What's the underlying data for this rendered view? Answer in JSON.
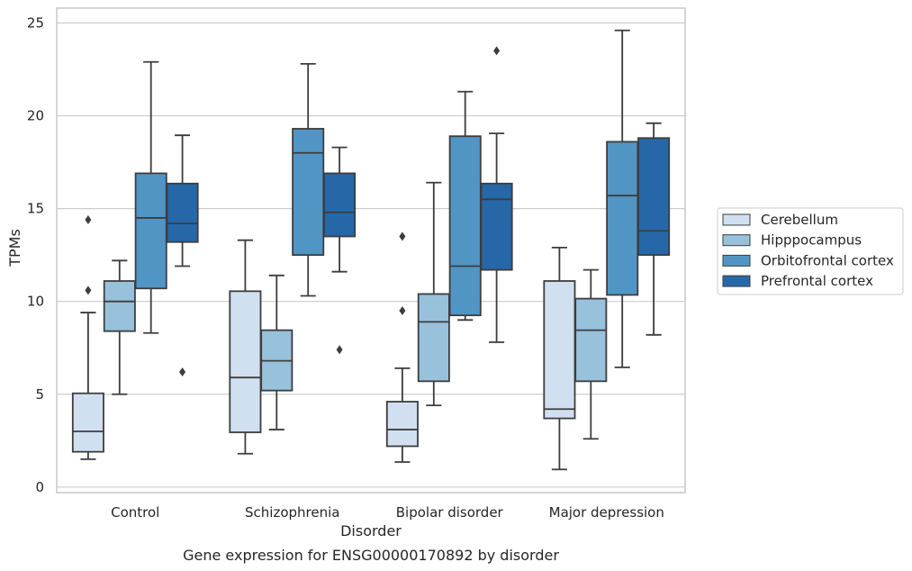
{
  "chart_data": {
    "type": "box",
    "title": "Gene expression for ENSG00000170892 by disorder",
    "xlabel": "Disorder",
    "ylabel": "TPMs",
    "ylim": [
      -0.3,
      25.8
    ],
    "yticks": [
      0,
      5,
      10,
      15,
      20,
      25
    ],
    "grid": "horizontal",
    "legend_position": "right",
    "categories": [
      "Control",
      "Schizophrenia",
      "Bipolar disorder",
      "Major depression"
    ],
    "series": [
      {
        "name": "Cerebellum",
        "color": "#d0e0f1",
        "boxes": [
          {
            "whislo": 1.5,
            "q1": 1.9,
            "med": 3.0,
            "q3": 5.05,
            "whishi": 9.4,
            "fliers": [
              10.6,
              14.4
            ]
          },
          {
            "whislo": 1.8,
            "q1": 2.95,
            "med": 5.9,
            "q3": 10.55,
            "whishi": 13.3,
            "fliers": []
          },
          {
            "whislo": 1.35,
            "q1": 2.2,
            "med": 3.1,
            "q3": 4.6,
            "whishi": 6.4,
            "fliers": [
              9.5,
              13.5
            ]
          },
          {
            "whislo": 0.95,
            "q1": 3.7,
            "med": 4.2,
            "q3": 11.1,
            "whishi": 12.9,
            "fliers": []
          }
        ]
      },
      {
        "name": "Hipppocampus",
        "color": "#98c1dc",
        "boxes": [
          {
            "whislo": 5.0,
            "q1": 8.4,
            "med": 10.0,
            "q3": 11.1,
            "whishi": 12.2,
            "fliers": []
          },
          {
            "whislo": 3.1,
            "q1": 5.2,
            "med": 6.8,
            "q3": 8.45,
            "whishi": 11.4,
            "fliers": []
          },
          {
            "whislo": 4.4,
            "q1": 5.7,
            "med": 8.9,
            "q3": 10.4,
            "whishi": 16.4,
            "fliers": []
          },
          {
            "whislo": 2.6,
            "q1": 5.7,
            "med": 8.45,
            "q3": 10.15,
            "whishi": 11.7,
            "fliers": []
          }
        ]
      },
      {
        "name": "Orbitofrontal cortex",
        "color": "#5195c5",
        "boxes": [
          {
            "whislo": 8.3,
            "q1": 10.7,
            "med": 14.5,
            "q3": 16.9,
            "whishi": 22.9,
            "fliers": []
          },
          {
            "whislo": 10.3,
            "q1": 12.5,
            "med": 18.0,
            "q3": 19.3,
            "whishi": 22.8,
            "fliers": []
          },
          {
            "whislo": 9.0,
            "q1": 9.25,
            "med": 11.9,
            "q3": 18.9,
            "whishi": 21.3,
            "fliers": []
          },
          {
            "whislo": 6.45,
            "q1": 10.35,
            "med": 15.7,
            "q3": 18.6,
            "whishi": 24.6,
            "fliers": []
          }
        ]
      },
      {
        "name": "Prefrontal cortex",
        "color": "#2667a8",
        "boxes": [
          {
            "whislo": 11.9,
            "q1": 13.2,
            "med": 14.2,
            "q3": 16.35,
            "whishi": 18.95,
            "fliers": [
              6.2
            ]
          },
          {
            "whislo": 11.6,
            "q1": 13.5,
            "med": 14.8,
            "q3": 16.9,
            "whishi": 18.3,
            "fliers": [
              7.4
            ]
          },
          {
            "whislo": 7.8,
            "q1": 11.7,
            "med": 15.5,
            "q3": 16.35,
            "whishi": 19.05,
            "fliers": [
              23.5
            ]
          },
          {
            "whislo": 8.2,
            "q1": 12.5,
            "med": 13.8,
            "q3": 18.8,
            "whishi": 19.6,
            "fliers": []
          }
        ]
      }
    ]
  }
}
